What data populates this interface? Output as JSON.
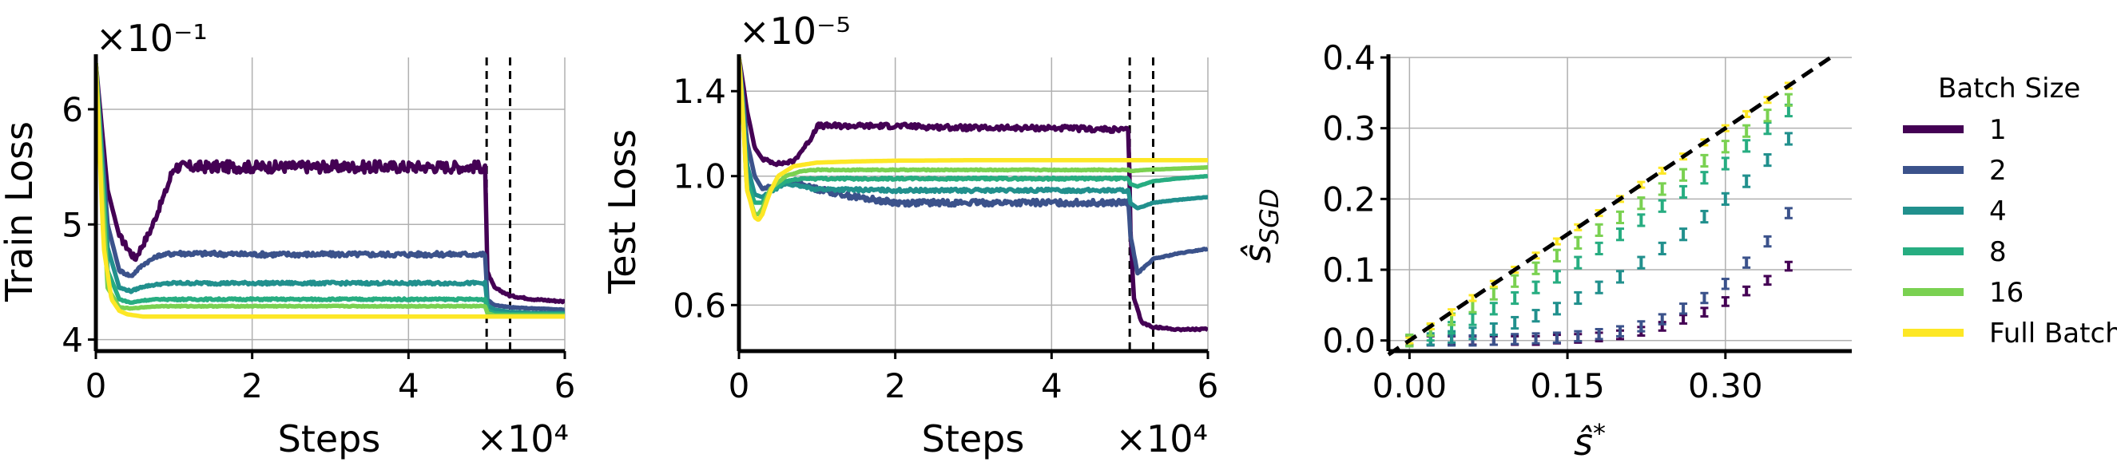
{
  "colors": {
    "batch_1": "#440154",
    "batch_2": "#3b528b",
    "batch_4": "#21908d",
    "batch_8": "#27ad81",
    "batch_16": "#7ad151",
    "full_batch": "#fde725",
    "grid": "#b0b0b0",
    "reference_line": "#000000"
  },
  "chart_data": [
    {
      "type": "line",
      "ylabel": "Train Loss",
      "xlabel": "Steps",
      "x_multiplier": "×10⁴",
      "y_multiplier": "×10⁻¹",
      "xlim": [
        0,
        60000
      ],
      "ylim": [
        3.9,
        6.45
      ],
      "xticks": [
        0,
        20000,
        40000,
        60000
      ],
      "xtick_labels": [
        "0",
        "2",
        "4",
        "6"
      ],
      "yticks": [
        4,
        5,
        6
      ],
      "ytick_labels": [
        "4",
        "5",
        "6"
      ],
      "vlines": [
        50000,
        53000
      ],
      "grid": true,
      "series": [
        {
          "name": "1",
          "color_key": "batch_1",
          "noise": 0.05,
          "x": [
            0,
            1500,
            3000,
            5000,
            7000,
            9000,
            10000,
            20000,
            30000,
            40000,
            49900,
            50000,
            51000,
            53000,
            56000,
            60000
          ],
          "y": [
            6.4,
            5.3,
            4.9,
            4.7,
            4.95,
            5.3,
            5.5,
            5.5,
            5.5,
            5.5,
            5.5,
            4.6,
            4.45,
            4.38,
            4.35,
            4.33
          ]
        },
        {
          "name": "2",
          "color_key": "batch_2",
          "noise": 0.02,
          "x": [
            0,
            1500,
            3000,
            4500,
            6000,
            8000,
            10000,
            20000,
            30000,
            40000,
            49900,
            50000,
            51000,
            53000,
            56000,
            60000
          ],
          "y": [
            6.4,
            5.0,
            4.6,
            4.55,
            4.65,
            4.73,
            4.75,
            4.74,
            4.74,
            4.74,
            4.74,
            4.35,
            4.3,
            4.28,
            4.27,
            4.26
          ]
        },
        {
          "name": "4",
          "color_key": "batch_4",
          "noise": 0.012,
          "x": [
            0,
            1500,
            3000,
            4500,
            6000,
            8000,
            10000,
            20000,
            30000,
            40000,
            49900,
            50000,
            51000,
            53000,
            56000,
            60000
          ],
          "y": [
            6.4,
            4.8,
            4.45,
            4.42,
            4.46,
            4.48,
            4.49,
            4.49,
            4.49,
            4.49,
            4.49,
            4.3,
            4.26,
            4.24,
            4.23,
            4.23
          ]
        },
        {
          "name": "8",
          "color_key": "batch_8",
          "noise": 0.008,
          "x": [
            0,
            1500,
            3000,
            4500,
            6000,
            8000,
            10000,
            20000,
            30000,
            40000,
            49900,
            50000,
            51000,
            53000,
            56000,
            60000
          ],
          "y": [
            6.4,
            4.6,
            4.35,
            4.32,
            4.34,
            4.35,
            4.35,
            4.35,
            4.35,
            4.35,
            4.35,
            4.25,
            4.23,
            4.22,
            4.22,
            4.22
          ]
        },
        {
          "name": "16",
          "color_key": "batch_16",
          "noise": 0.004,
          "x": [
            0,
            1500,
            3000,
            4500,
            6000,
            8000,
            10000,
            20000,
            30000,
            40000,
            49900,
            50000,
            51000,
            53000,
            56000,
            60000
          ],
          "y": [
            6.4,
            4.45,
            4.28,
            4.27,
            4.28,
            4.29,
            4.29,
            4.29,
            4.29,
            4.29,
            4.29,
            4.23,
            4.21,
            4.21,
            4.21,
            4.21
          ]
        },
        {
          "name": "Full Batch",
          "color_key": "full_batch",
          "noise": 0,
          "x": [
            0,
            1000,
            2000,
            3000,
            4000,
            6000,
            10000,
            30000,
            60000
          ],
          "y": [
            6.4,
            4.8,
            4.35,
            4.25,
            4.22,
            4.2,
            4.2,
            4.2,
            4.2
          ]
        }
      ]
    },
    {
      "type": "line",
      "ylabel": "Test Loss",
      "xlabel": "Steps",
      "x_multiplier": "×10⁴",
      "y_multiplier": "×10⁻⁵",
      "xlim": [
        0,
        60000
      ],
      "ylim": [
        0.5,
        1.6
      ],
      "y_scale": "log",
      "xticks": [
        0,
        20000,
        40000,
        60000
      ],
      "xtick_labels": [
        "0",
        "2",
        "4",
        "6"
      ],
      "yticks": [
        0.6,
        1.0,
        1.4
      ],
      "ytick_labels": [
        "0.6",
        "1.0",
        "1.4"
      ],
      "vlines": [
        50000,
        53000
      ],
      "grid": true,
      "series": [
        {
          "name": "1",
          "color_key": "batch_1",
          "noise": 0.012,
          "x": [
            0,
            1000,
            2000,
            3000,
            5000,
            7000,
            9000,
            10000,
            20000,
            30000,
            40000,
            49900,
            50000,
            50500,
            51500,
            53000,
            56000,
            60000
          ],
          "y": [
            1.6,
            1.3,
            1.12,
            1.07,
            1.05,
            1.06,
            1.15,
            1.22,
            1.22,
            1.21,
            1.21,
            1.2,
            0.85,
            0.62,
            0.56,
            0.55,
            0.545,
            0.545
          ]
        },
        {
          "name": "2",
          "color_key": "batch_2",
          "noise": 0.01,
          "x": [
            0,
            1000,
            2000,
            3000,
            5000,
            7000,
            10000,
            15000,
            20000,
            30000,
            40000,
            49900,
            50000,
            51000,
            52000,
            53000,
            56000,
            60000
          ],
          "y": [
            1.6,
            1.15,
            1.0,
            0.95,
            0.97,
            0.98,
            0.95,
            0.92,
            0.9,
            0.9,
            0.9,
            0.9,
            0.8,
            0.68,
            0.7,
            0.72,
            0.735,
            0.75
          ]
        },
        {
          "name": "4",
          "color_key": "batch_4",
          "noise": 0.006,
          "x": [
            0,
            1000,
            2000,
            3000,
            4000,
            6000,
            8000,
            10000,
            20000,
            30000,
            40000,
            49900,
            50000,
            51000,
            53000,
            56000,
            60000
          ],
          "y": [
            1.6,
            1.05,
            0.93,
            0.92,
            0.94,
            0.97,
            0.96,
            0.95,
            0.945,
            0.945,
            0.945,
            0.945,
            0.9,
            0.88,
            0.9,
            0.91,
            0.92
          ]
        },
        {
          "name": "8",
          "color_key": "batch_8",
          "noise": 0.004,
          "x": [
            0,
            1000,
            2000,
            3000,
            4000,
            6000,
            8000,
            10000,
            20000,
            30000,
            40000,
            49900,
            50000,
            51000,
            53000,
            56000,
            60000
          ],
          "y": [
            1.6,
            0.98,
            0.9,
            0.9,
            0.94,
            0.98,
            0.99,
            0.99,
            0.99,
            0.99,
            0.99,
            0.99,
            0.97,
            0.96,
            0.98,
            0.99,
            1.0
          ]
        },
        {
          "name": "16",
          "color_key": "batch_16",
          "noise": 0.002,
          "x": [
            0,
            1000,
            2000,
            2500,
            3000,
            4000,
            6000,
            8000,
            10000,
            20000,
            30000,
            40000,
            49900,
            50000,
            52000,
            56000,
            60000
          ],
          "y": [
            1.6,
            0.95,
            0.86,
            0.86,
            0.88,
            0.95,
            1.0,
            1.02,
            1.025,
            1.025,
            1.025,
            1.025,
            1.025,
            1.02,
            1.025,
            1.03,
            1.035
          ]
        },
        {
          "name": "Full Batch",
          "color_key": "full_batch",
          "noise": 0,
          "x": [
            0,
            1000,
            2000,
            2500,
            3000,
            4000,
            5000,
            7000,
            10000,
            15000,
            20000,
            30000,
            40000,
            60000
          ],
          "y": [
            1.6,
            0.95,
            0.85,
            0.84,
            0.86,
            0.94,
            1.0,
            1.04,
            1.055,
            1.06,
            1.063,
            1.065,
            1.065,
            1.065
          ]
        }
      ]
    },
    {
      "type": "scatter",
      "ylabel": "ŝ_SGD",
      "xlabel": "ŝ*",
      "xlim": [
        -0.02,
        0.42
      ],
      "ylim": [
        -0.015,
        0.4
      ],
      "xticks": [
        0.0,
        0.15,
        0.3
      ],
      "xtick_labels": [
        "0.00",
        "0.15",
        "0.30"
      ],
      "yticks": [
        0.0,
        0.1,
        0.2,
        0.3,
        0.4
      ],
      "ytick_labels": [
        "0.0",
        "0.1",
        "0.2",
        "0.3",
        "0.4"
      ],
      "reference_line": "y = x (dashed)",
      "grid": true,
      "legend": {
        "title": "Batch Size",
        "placement": "right outside"
      },
      "series": [
        {
          "name": "1",
          "color_key": "batch_1",
          "err": 0.006,
          "x": [
            0.0,
            0.02,
            0.04,
            0.06,
            0.08,
            0.1,
            0.12,
            0.14,
            0.16,
            0.18,
            0.2,
            0.22,
            0.24,
            0.26,
            0.28,
            0.3,
            0.32,
            0.34,
            0.36
          ],
          "y": [
            0.0,
            0.0,
            0.0,
            0.0,
            0.0,
            0.0,
            0.0,
            0.002,
            0.003,
            0.005,
            0.008,
            0.013,
            0.02,
            0.03,
            0.04,
            0.055,
            0.07,
            0.085,
            0.105
          ]
        },
        {
          "name": "2",
          "color_key": "batch_2",
          "err": 0.007,
          "x": [
            0.0,
            0.02,
            0.04,
            0.06,
            0.08,
            0.1,
            0.12,
            0.14,
            0.16,
            0.18,
            0.2,
            0.22,
            0.24,
            0.26,
            0.28,
            0.3,
            0.32,
            0.34,
            0.36
          ],
          "y": [
            0.0,
            0.0,
            0.0,
            0.0,
            0.001,
            0.002,
            0.003,
            0.004,
            0.006,
            0.009,
            0.013,
            0.02,
            0.03,
            0.045,
            0.06,
            0.08,
            0.11,
            0.14,
            0.18
          ]
        },
        {
          "name": "4",
          "color_key": "batch_4",
          "err": 0.008,
          "x": [
            0.0,
            0.02,
            0.04,
            0.06,
            0.08,
            0.1,
            0.12,
            0.14,
            0.16,
            0.18,
            0.2,
            0.22,
            0.24,
            0.26,
            0.28,
            0.3,
            0.32,
            0.34,
            0.36
          ],
          "y": [
            0.0,
            0.002,
            0.005,
            0.01,
            0.016,
            0.025,
            0.035,
            0.045,
            0.06,
            0.075,
            0.09,
            0.11,
            0.13,
            0.15,
            0.175,
            0.2,
            0.225,
            0.255,
            0.285
          ]
        },
        {
          "name": "8",
          "color_key": "batch_8",
          "err": 0.008,
          "x": [
            0.0,
            0.02,
            0.04,
            0.06,
            0.08,
            0.1,
            0.12,
            0.14,
            0.16,
            0.18,
            0.2,
            0.22,
            0.24,
            0.26,
            0.28,
            0.3,
            0.32,
            0.34,
            0.36
          ],
          "y": [
            0.0,
            0.008,
            0.018,
            0.03,
            0.045,
            0.06,
            0.075,
            0.09,
            0.11,
            0.13,
            0.15,
            0.17,
            0.19,
            0.21,
            0.23,
            0.25,
            0.275,
            0.3,
            0.325
          ]
        },
        {
          "name": "16",
          "color_key": "batch_16",
          "err": 0.008,
          "x": [
            0.0,
            0.02,
            0.04,
            0.06,
            0.08,
            0.1,
            0.12,
            0.14,
            0.16,
            0.18,
            0.2,
            0.22,
            0.24,
            0.26,
            0.28,
            0.3,
            0.32,
            0.34,
            0.36
          ],
          "y": [
            0.0,
            0.015,
            0.03,
            0.048,
            0.066,
            0.084,
            0.102,
            0.12,
            0.138,
            0.156,
            0.174,
            0.194,
            0.214,
            0.234,
            0.254,
            0.274,
            0.296,
            0.318,
            0.34
          ]
        },
        {
          "name": "Full Batch",
          "color_key": "full_batch",
          "err": 0.004,
          "x": [
            0.0,
            0.02,
            0.04,
            0.06,
            0.08,
            0.1,
            0.12,
            0.14,
            0.16,
            0.18,
            0.2,
            0.22,
            0.24,
            0.26,
            0.28,
            0.3,
            0.32,
            0.34,
            0.36
          ],
          "y": [
            0.0,
            0.02,
            0.04,
            0.06,
            0.08,
            0.1,
            0.12,
            0.14,
            0.16,
            0.18,
            0.2,
            0.22,
            0.24,
            0.26,
            0.28,
            0.3,
            0.32,
            0.34,
            0.36
          ]
        }
      ]
    }
  ]
}
